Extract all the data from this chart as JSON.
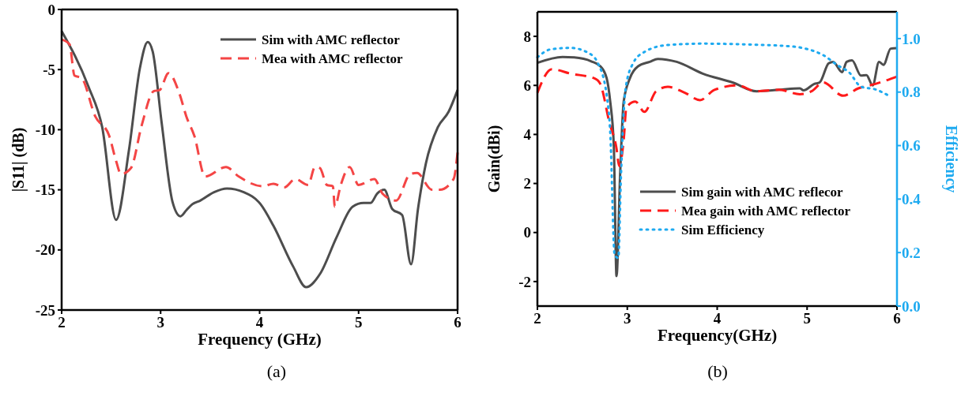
{
  "chart_data": [
    {
      "type": "line",
      "xlabel": "Frequency (GHz)",
      "ylabel": "|S11| (dB)",
      "xlim": [
        2,
        6
      ],
      "xticks": [
        2,
        3,
        4,
        5,
        6
      ],
      "ylim": [
        -25,
        0
      ],
      "yticks": [
        -25,
        -20,
        -15,
        -10,
        -5,
        0
      ],
      "legend": "top right",
      "annotations": [
        "(a)"
      ],
      "series": [
        {
          "name": "Sim with AMC reflector",
          "color": "#4d4d4d",
          "line_style": "solid",
          "x": [
            2,
            2.27,
            2.41,
            2.55,
            2.68,
            2.79,
            2.87,
            2.92,
            3.01,
            3.12,
            3.2,
            3.26,
            3.32,
            3.4,
            3.54,
            3.67,
            3.84,
            4.01,
            4.14,
            4.34,
            4.47,
            4.61,
            4.78,
            4.94,
            5.05,
            5.12,
            5.19,
            5.26,
            5.34,
            5.44,
            5.53,
            5.6,
            5.68,
            5.8,
            5.91,
            6
          ],
          "values": [
            -1.8,
            -6.4,
            -9.8,
            -17.5,
            -11.7,
            -4.9,
            -2.7,
            -3.5,
            -9.4,
            -16.0,
            -17.2,
            -16.7,
            -16.2,
            -15.9,
            -15.2,
            -14.9,
            -15.2,
            -16.2,
            -18.0,
            -21.4,
            -23.1,
            -22.0,
            -18.9,
            -16.4,
            -16.1,
            -16.1,
            -15.3,
            -15.0,
            -16.6,
            -17.1,
            -21.2,
            -16.6,
            -12.8,
            -9.8,
            -8.5,
            -6.7
          ]
        },
        {
          "name": "Mea with AMC reflector",
          "color": "#f44545",
          "line_style": "dashed",
          "x": [
            2,
            2.08,
            2.13,
            2.2,
            2.34,
            2.48,
            2.55,
            2.6,
            2.7,
            2.81,
            2.93,
            2.99,
            3.08,
            3.19,
            3.26,
            3.34,
            3.45,
            3.66,
            3.79,
            4.03,
            4.14,
            4.25,
            4.36,
            4.49,
            4.56,
            4.61,
            4.68,
            4.74,
            4.76,
            4.82,
            4.91,
            5.0,
            5.16,
            5.24,
            5.38,
            5.52,
            5.59,
            5.74,
            5.82,
            5.96,
            6
          ],
          "values": [
            -2.5,
            -2.9,
            -5.5,
            -5.7,
            -8.9,
            -10.5,
            -12.6,
            -13.7,
            -13.2,
            -9.6,
            -6.8,
            -6.7,
            -5.3,
            -7.0,
            -8.9,
            -10.5,
            -13.9,
            -13.1,
            -13.9,
            -14.7,
            -14.5,
            -14.8,
            -14.1,
            -14.6,
            -13.1,
            -13.2,
            -14.6,
            -14.7,
            -16.4,
            -14.6,
            -13.1,
            -14.6,
            -14.1,
            -15.3,
            -15.9,
            -13.7,
            -13.6,
            -15.0,
            -15.0,
            -14.1,
            -11.9
          ]
        }
      ]
    },
    {
      "type": "line",
      "xlabel": "Frequency(GHz)",
      "ylabel": "Gain(dBi)",
      "y2label": "Efficiency",
      "xlim": [
        2,
        6
      ],
      "xticks": [
        2,
        3,
        4,
        5,
        6
      ],
      "ylim": [
        -3,
        9
      ],
      "yticks": [
        -2,
        0,
        2,
        4,
        6,
        8
      ],
      "y2lim": [
        0,
        1.1
      ],
      "y2ticks": [
        {
          "value": 0,
          "label": "0.0"
        },
        0.2,
        0.4,
        0.6,
        0.8,
        {
          "value": 1,
          "label": "1.0"
        }
      ],
      "legend": "bottom",
      "annotations": [
        "(b)"
      ],
      "series": [
        {
          "name": "Sim gain with AMC reflecor",
          "color": "#4d4d4d",
          "line_style": "solid",
          "x": [
            2,
            2.28,
            2.41,
            2.6,
            2.7,
            2.77,
            2.81,
            2.85,
            2.88,
            2.92,
            2.96,
            3.03,
            3.12,
            3.25,
            3.34,
            3.55,
            3.84,
            4.17,
            4.44,
            4.69,
            4.92,
            4.96,
            5.08,
            5.14,
            5.24,
            5.29,
            5.39,
            5.44,
            5.5,
            5.6,
            5.66,
            5.73,
            5.8,
            5.85,
            5.93,
            6
          ],
          "values": [
            6.92,
            7.16,
            7.14,
            6.98,
            6.78,
            6.3,
            5.34,
            3.54,
            -1.78,
            2.35,
            5.34,
            6.3,
            6.78,
            6.96,
            7.08,
            6.96,
            6.48,
            6.12,
            5.76,
            5.82,
            5.88,
            5.8,
            6.06,
            6.12,
            6.9,
            6.96,
            6.54,
            6.96,
            7.02,
            6.4,
            6.42,
            6.0,
            6.96,
            6.84,
            7.5,
            7.52
          ]
        },
        {
          "name": "Mea gain with AMC reflector",
          "color": "#ff1a1a",
          "line_style": "dashed",
          "x": [
            2,
            2.16,
            2.37,
            2.64,
            2.7,
            2.8,
            2.88,
            2.91,
            2.96,
            2.99,
            3.09,
            3.19,
            3.32,
            3.45,
            3.64,
            3.81,
            3.97,
            4.23,
            4.43,
            4.69,
            4.92,
            5.05,
            5.18,
            5.4,
            5.57,
            5.76,
            6
          ],
          "values": [
            5.7,
            6.66,
            6.48,
            6.28,
            6.06,
            4.5,
            3.43,
            2.71,
            3.78,
            5.1,
            5.34,
            4.92,
            5.76,
            5.94,
            5.7,
            5.4,
            5.82,
            6.0,
            5.76,
            5.82,
            5.64,
            5.76,
            6.12,
            5.58,
            5.88,
            6.06,
            6.36
          ]
        },
        {
          "name": "Sim Efficiency",
          "color": "#1eaaf0",
          "line_style": "dotted",
          "axis": "y2",
          "x": [
            2,
            2.15,
            2.37,
            2.57,
            2.67,
            2.77,
            2.81,
            2.86,
            2.9,
            2.93,
            2.98,
            3.06,
            3.19,
            3.45,
            3.84,
            4.33,
            4.85,
            5.01,
            5.18,
            5.34,
            5.47,
            5.6,
            5.76,
            5.89
          ],
          "values": [
            0.93,
            0.96,
            0.965,
            0.946,
            0.91,
            0.79,
            0.65,
            0.19,
            0.18,
            0.49,
            0.81,
            0.905,
            0.95,
            0.976,
            0.981,
            0.978,
            0.97,
            0.96,
            0.938,
            0.9,
            0.873,
            0.82,
            0.81,
            0.79
          ]
        }
      ]
    }
  ]
}
